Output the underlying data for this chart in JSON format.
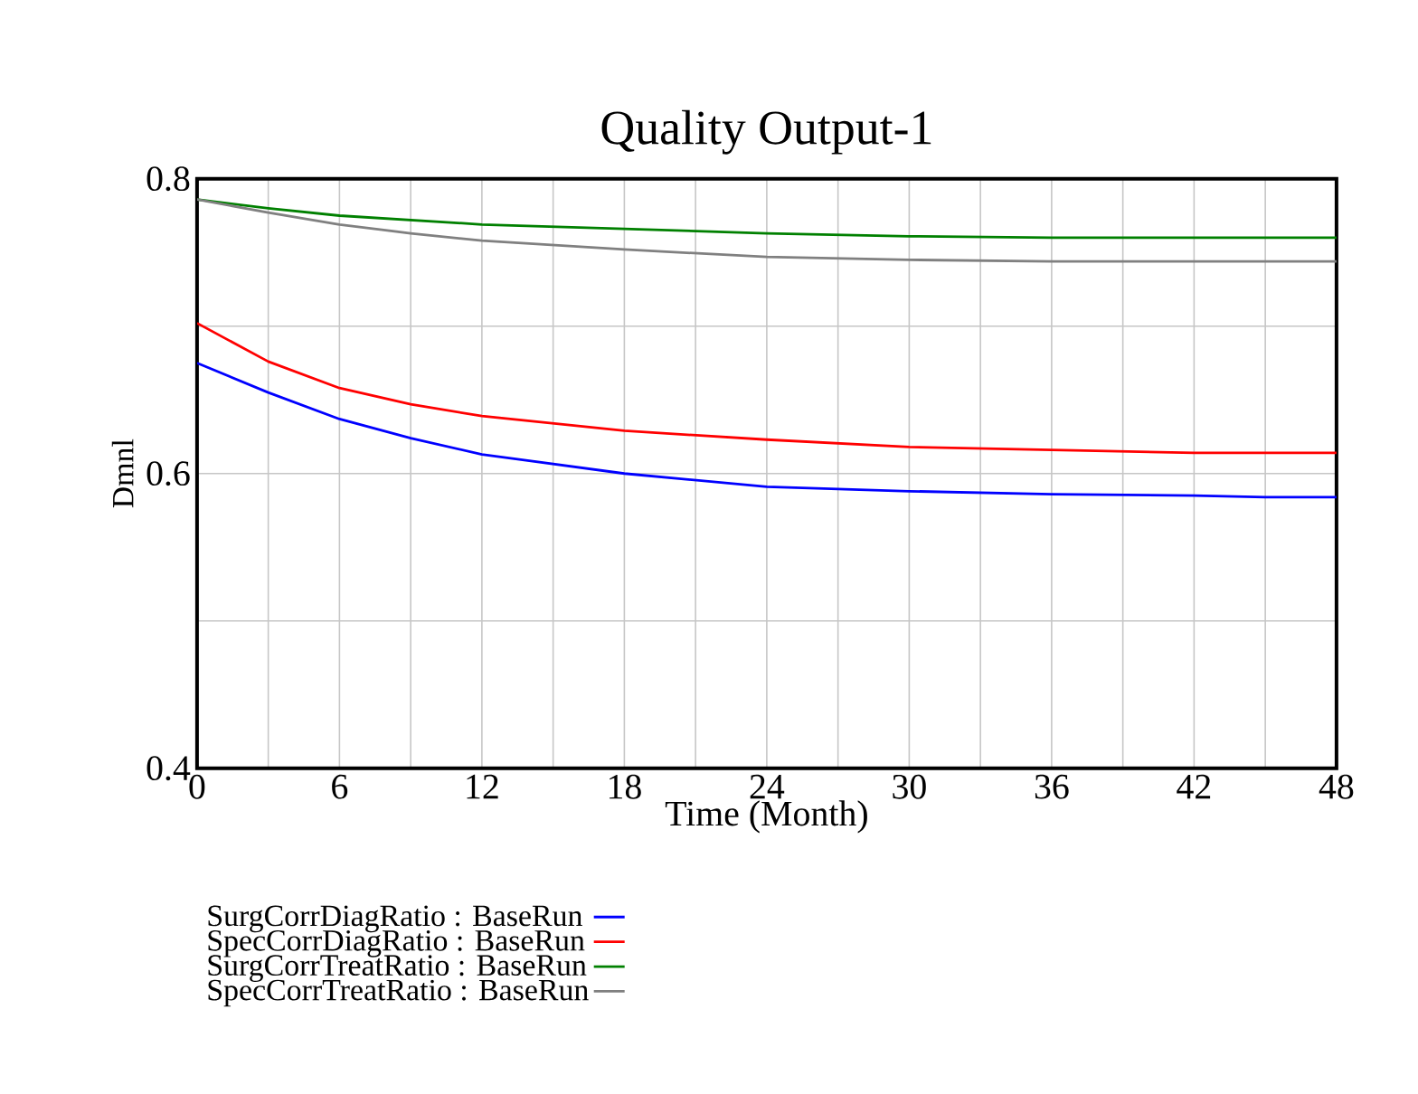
{
  "chart_data": {
    "type": "line",
    "title": "Quality Output-1",
    "xlabel": "Time (Month)",
    "ylabel": "Dmnl",
    "x": [
      0,
      3,
      6,
      9,
      12,
      18,
      24,
      30,
      36,
      42,
      45,
      48
    ],
    "series": [
      {
        "name": "SurgCorrDiagRatio : BaseRun",
        "color": "#0000ff",
        "values": [
          0.675,
          0.655,
          0.637,
          0.624,
          0.613,
          0.6,
          0.591,
          0.588,
          0.586,
          0.585,
          0.584,
          0.584
        ]
      },
      {
        "name": "SpecCorrDiagRatio : BaseRun",
        "color": "#ff0000",
        "values": [
          0.702,
          0.676,
          0.658,
          0.647,
          0.639,
          0.629,
          0.623,
          0.618,
          0.616,
          0.614,
          0.614,
          0.614
        ]
      },
      {
        "name": "SurgCorrTreatRatio : BaseRun",
        "color": "#008000",
        "values": [
          0.786,
          0.78,
          0.775,
          0.772,
          0.769,
          0.766,
          0.763,
          0.761,
          0.76,
          0.76,
          0.76,
          0.76
        ]
      },
      {
        "name": "SpecCorrTreatRatio : BaseRun",
        "color": "#808080",
        "values": [
          0.786,
          0.777,
          0.769,
          0.763,
          0.758,
          0.752,
          0.747,
          0.745,
          0.744,
          0.744,
          0.744,
          0.744
        ]
      }
    ],
    "xlim": [
      0,
      48
    ],
    "xticks": [
      0,
      6,
      12,
      18,
      24,
      30,
      36,
      42,
      48
    ],
    "ylim": [
      0.4,
      0.8
    ],
    "yticks": [
      0.4,
      0.6,
      0.8
    ],
    "grid": true,
    "legend": "bottom left",
    "line_style": "solid",
    "marker": "none"
  }
}
